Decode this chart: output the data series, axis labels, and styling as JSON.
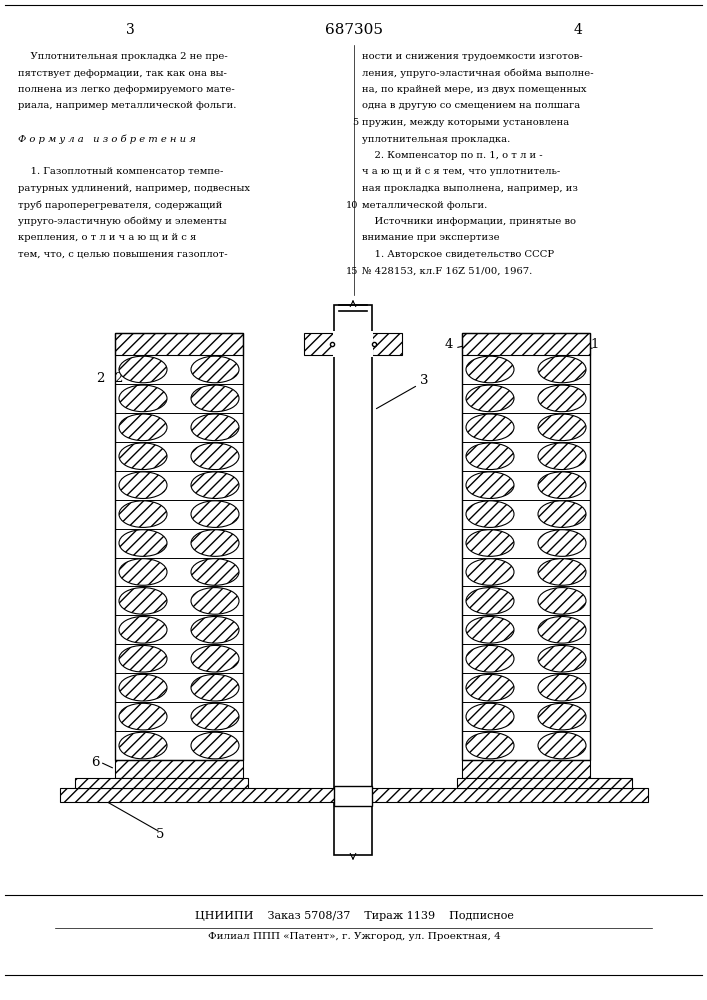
{
  "page_number_left": "3",
  "patent_number": "687305",
  "page_number_right": "4",
  "text_left_lines": [
    "    Уплотнительная прокладка 2 не пре-",
    "пятствует деформации, так как она вы-",
    "полнена из легко деформируемого мате-",
    "риала, например металлической фольги.",
    "",
    "Ф о р м у л а   и з о б р е т е н и я",
    "",
    "    1. Газоплотный компенсатор темпе-",
    "ратурных удлинений, например, подвесных",
    "труб пароперегревателя, содержащий",
    "упруго-эластичную обойму и элементы",
    "крепления, о т л и ч а ю щ и й с я",
    "тем, что, с целью повышения газоплот-"
  ],
  "text_right_lines": [
    "ности и снижения трудоемкости изготов-",
    "ления, упруго-эластичная обойма выполне-",
    "на, по крайней мере, из двух помещенных",
    "одна в другую со смещением на полшага",
    "пружин, между которыми установлена",
    "уплотнительная прокладка.",
    "    2. Компенсатор по п. 1, о т л и -",
    "ч а ю щ и й с я тем, что уплотнитель-",
    "ная прокладка выполнена, например, из",
    "металлической фольги.",
    "    Источники информации, принятые во",
    "внимание при экспертизе",
    "    1. Авторское свидетельство СССР",
    "№ 428153, кл.F 16Z 51/00, 1967."
  ],
  "line_numbers": [
    5,
    10,
    15
  ],
  "footer_main": "ЦНИИПИ    Заказ 5708/37    Тираж 1139    Подписное",
  "footer_sub": "Филиал ППП «Патент», г. Ужгород, ул. Проектная, 4",
  "bg_color": "#ffffff",
  "text_color": "#000000",
  "n_spring_rows": 14,
  "spring_coil_r": 0.022
}
